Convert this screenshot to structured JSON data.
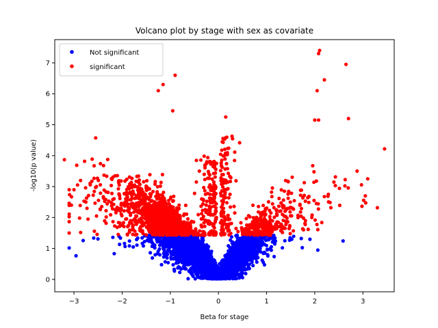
{
  "chart_data": {
    "type": "scatter",
    "title": "Volcano plot by stage with sex as covariate",
    "xlabel": "Beta for stage",
    "ylabel": "-log10(p value)",
    "xlim": [
      -3.4,
      3.65
    ],
    "ylim": [
      -0.4,
      7.75
    ],
    "xticks": [
      -3,
      -2,
      -1,
      0,
      1,
      2,
      3
    ],
    "yticks": [
      0,
      1,
      2,
      3,
      4,
      5,
      6,
      7
    ],
    "grid": false,
    "legend_position": "top-left",
    "significance_threshold": 1.43,
    "series": [
      {
        "name": "Not significant",
        "color": "#0000ff",
        "marker": "circle"
      },
      {
        "name": "significant",
        "color": "#ff0000",
        "marker": "circle"
      }
    ],
    "notable_points": [
      {
        "x": 2.1,
        "y": 7.4
      },
      {
        "x": 2.08,
        "y": 7.3
      },
      {
        "x": 2.65,
        "y": 6.95
      },
      {
        "x": -0.9,
        "y": 6.6
      },
      {
        "x": 2.2,
        "y": 6.45
      },
      {
        "x": -1.15,
        "y": 6.3
      },
      {
        "x": 2.05,
        "y": 6.1
      },
      {
        "x": -1.25,
        "y": 6.1
      },
      {
        "x": -0.95,
        "y": 5.45
      },
      {
        "x": 2.7,
        "y": 5.2
      },
      {
        "x": 2.0,
        "y": 5.15
      },
      {
        "x": 2.08,
        "y": 5.15
      },
      {
        "x": 0.15,
        "y": 5.25
      },
      {
        "x": 3.45,
        "y": 4.22
      },
      {
        "x": -3.2,
        "y": 3.87
      },
      {
        "x": 3.1,
        "y": 3.25
      },
      {
        "x": 3.05,
        "y": 2.7
      },
      {
        "x": 2.88,
        "y": 3.5
      },
      {
        "x": -3.0,
        "y": 2.9
      }
    ]
  }
}
